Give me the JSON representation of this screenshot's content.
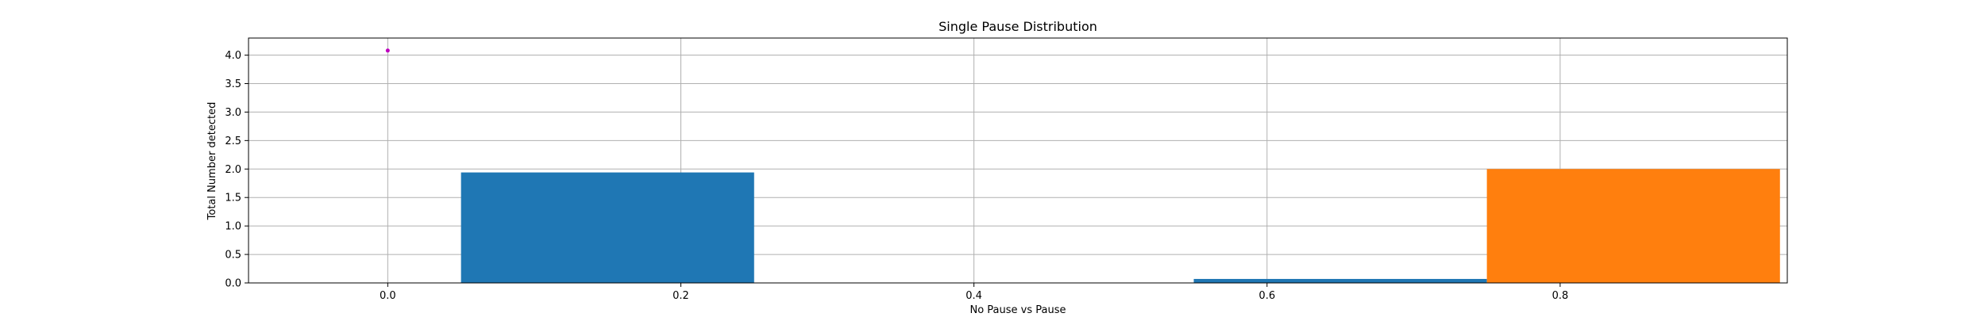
{
  "chart_data": {
    "type": "bar",
    "title": "Single Pause Distribution",
    "xlabel": "No Pause vs Pause",
    "ylabel": "Total Number detected",
    "xlim": [
      -0.095,
      0.955
    ],
    "ylim": [
      0.0,
      4.3
    ],
    "xticks": [
      0.0,
      0.2,
      0.4,
      0.6,
      0.8
    ],
    "xtick_labels": [
      "0.0",
      "0.2",
      "0.4",
      "0.6",
      "0.8"
    ],
    "yticks": [
      0.0,
      0.5,
      1.0,
      1.5,
      2.0,
      2.5,
      3.0,
      3.5,
      4.0
    ],
    "ytick_labels": [
      "0.0",
      "0.5",
      "1.0",
      "1.5",
      "2.0",
      "2.5",
      "3.0",
      "3.5",
      "4.0"
    ],
    "grid": true,
    "series": [
      {
        "color": "#1f77b4",
        "bars": [
          {
            "x0": 0.05,
            "x1": 0.25,
            "value": 1.94
          },
          {
            "x0": 0.55,
            "x1": 0.75,
            "value": 0.07
          }
        ]
      },
      {
        "color": "#ff7f0e",
        "bars": [
          {
            "x0": 0.75,
            "x1": 0.95,
            "value": 2.0
          }
        ]
      }
    ],
    "points": [
      {
        "x": 0.0,
        "y": 4.08,
        "color": "#bf00bf"
      }
    ]
  }
}
